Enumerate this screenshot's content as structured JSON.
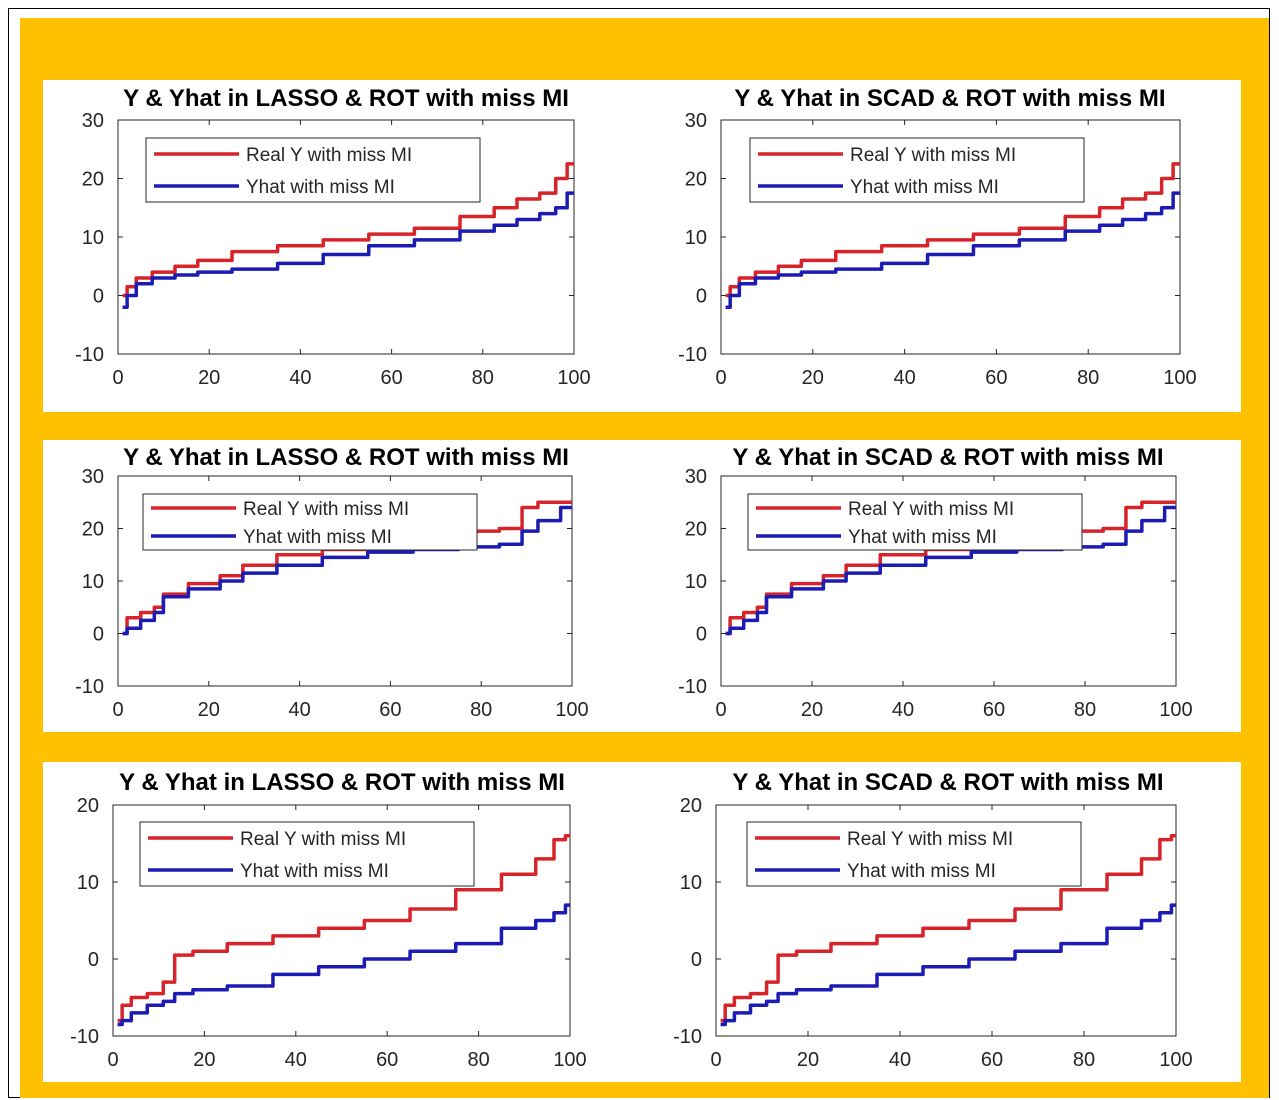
{
  "colors": {
    "frame_bg": "#ffc000",
    "panel_bg": "#ffffff",
    "real_line": "#d7242a",
    "yhat_line": "#1c1cb4",
    "axis": "#262626"
  },
  "legend": {
    "real": "Real Y with miss MI",
    "yhat": "Yhat with miss MI"
  },
  "chart_data": [
    {
      "type": "line",
      "title": "Y & Yhat in LASSO & ROT with miss MI",
      "xlim": [
        0,
        100
      ],
      "ylim": [
        -10,
        30
      ],
      "xticks": [
        0,
        20,
        40,
        60,
        80,
        100
      ],
      "yticks": [
        -10,
        0,
        10,
        20,
        30
      ],
      "legend_position": "top-left",
      "x": [
        1,
        3,
        5,
        10,
        15,
        20,
        30,
        40,
        50,
        60,
        70,
        80,
        85,
        90,
        95,
        97,
        100
      ],
      "series": [
        {
          "name": "Real Y with miss MI",
          "values": [
            0,
            1.5,
            3,
            4,
            5,
            6,
            7.5,
            8.5,
            9.5,
            10.5,
            11.5,
            13.5,
            15,
            16.5,
            17.5,
            20,
            22.5
          ]
        },
        {
          "name": "Yhat with miss MI",
          "values": [
            -2,
            0,
            2,
            3,
            3.5,
            4,
            4.5,
            5.5,
            7,
            8.5,
            9.5,
            11,
            12,
            13,
            14,
            15,
            17.5
          ]
        }
      ]
    },
    {
      "type": "line",
      "title": "Y & Yhat in SCAD & ROT with miss MI",
      "xlim": [
        0,
        100
      ],
      "ylim": [
        -10,
        30
      ],
      "xticks": [
        0,
        20,
        40,
        60,
        80,
        100
      ],
      "yticks": [
        -10,
        0,
        10,
        20,
        30
      ],
      "legend_position": "top-left",
      "x": [
        1,
        3,
        5,
        10,
        15,
        20,
        30,
        40,
        50,
        60,
        70,
        80,
        85,
        90,
        95,
        97,
        100
      ],
      "series": [
        {
          "name": "Real Y with miss MI",
          "values": [
            0,
            1.5,
            3,
            4,
            5,
            6,
            7.5,
            8.5,
            9.5,
            10.5,
            11.5,
            13.5,
            15,
            16.5,
            17.5,
            20,
            22.5
          ]
        },
        {
          "name": "Yhat with miss MI",
          "values": [
            -2,
            0,
            2,
            3,
            3.5,
            4,
            4.5,
            5.5,
            7,
            8.5,
            9.5,
            11,
            12,
            13,
            14,
            15,
            17.5
          ]
        }
      ]
    },
    {
      "type": "line",
      "title": "Y & Yhat in LASSO & ROT with miss MI",
      "xlim": [
        0,
        100
      ],
      "ylim": [
        -10,
        30
      ],
      "xticks": [
        0,
        20,
        40,
        60,
        80,
        100
      ],
      "yticks": [
        -10,
        0,
        10,
        20,
        30
      ],
      "legend_position": "top-left",
      "x": [
        1,
        3,
        7,
        9,
        11,
        20,
        25,
        30,
        40,
        50,
        60,
        70,
        80,
        88,
        90,
        95,
        100
      ],
      "series": [
        {
          "name": "Real Y with miss MI",
          "values": [
            0,
            3,
            4,
            5,
            7.5,
            9.5,
            11,
            13,
            15,
            16,
            17,
            18,
            19.5,
            20,
            24,
            25,
            25
          ]
        },
        {
          "name": "Yhat with miss MI",
          "values": [
            0,
            1,
            2.5,
            4,
            7,
            8.5,
            10,
            11.5,
            13,
            14.5,
            15.5,
            16,
            16.5,
            17,
            19.5,
            21.5,
            24
          ]
        }
      ]
    },
    {
      "type": "line",
      "title": "Y & Yhat in SCAD & ROT with miss MI",
      "xlim": [
        0,
        100
      ],
      "ylim": [
        -10,
        30
      ],
      "xticks": [
        0,
        20,
        40,
        60,
        80,
        100
      ],
      "yticks": [
        -10,
        0,
        10,
        20,
        30
      ],
      "legend_position": "top-left",
      "x": [
        1,
        3,
        7,
        9,
        11,
        20,
        25,
        30,
        40,
        50,
        60,
        70,
        80,
        88,
        90,
        95,
        100
      ],
      "series": [
        {
          "name": "Real Y with miss MI",
          "values": [
            0,
            3,
            4,
            5,
            7.5,
            9.5,
            11,
            13,
            15,
            16,
            17,
            18,
            19.5,
            20,
            24,
            25,
            25
          ]
        },
        {
          "name": "Yhat with miss MI",
          "values": [
            0,
            1,
            2.5,
            4,
            7,
            8.5,
            10,
            11.5,
            13,
            14.5,
            15.5,
            16,
            16.5,
            17,
            19.5,
            21.5,
            24
          ]
        }
      ]
    },
    {
      "type": "line",
      "title": "Y & Yhat in LASSO & ROT with miss MI",
      "xlim": [
        0,
        100
      ],
      "ylim": [
        -10,
        20
      ],
      "xticks": [
        0,
        20,
        40,
        60,
        80,
        100
      ],
      "yticks": [
        -10,
        0,
        10,
        20
      ],
      "legend_position": "top-left",
      "x": [
        1,
        3,
        5,
        10,
        12,
        15,
        20,
        30,
        40,
        50,
        60,
        70,
        80,
        90,
        95,
        98,
        100
      ],
      "series": [
        {
          "name": "Real Y with miss MI",
          "values": [
            -8,
            -6,
            -5,
            -4.5,
            -3,
            0.5,
            1,
            2,
            3,
            4,
            5,
            6.5,
            9,
            11,
            13,
            15.5,
            16
          ]
        },
        {
          "name": "Yhat with miss MI",
          "values": [
            -8.5,
            -8,
            -7,
            -6,
            -5.5,
            -4.5,
            -4,
            -3.5,
            -2,
            -1,
            0,
            1,
            2,
            4,
            5,
            6,
            7
          ]
        }
      ]
    },
    {
      "type": "line",
      "title": "Y & Yhat in SCAD & ROT with miss MI",
      "xlim": [
        0,
        100
      ],
      "ylim": [
        -10,
        20
      ],
      "xticks": [
        0,
        20,
        40,
        60,
        80,
        100
      ],
      "yticks": [
        -10,
        0,
        10,
        20
      ],
      "legend_position": "top-left",
      "x": [
        1,
        3,
        5,
        10,
        12,
        15,
        20,
        30,
        40,
        50,
        60,
        70,
        80,
        90,
        95,
        98,
        100
      ],
      "series": [
        {
          "name": "Real Y with miss MI",
          "values": [
            -8,
            -6,
            -5,
            -4.5,
            -3,
            0.5,
            1,
            2,
            3,
            4,
            5,
            6.5,
            9,
            11,
            13,
            15.5,
            16
          ]
        },
        {
          "name": "Yhat with miss MI",
          "values": [
            -8.5,
            -8,
            -7,
            -6,
            -5.5,
            -4.5,
            -4,
            -3.5,
            -2,
            -1,
            0,
            1,
            2,
            4,
            5,
            6,
            7
          ]
        }
      ]
    }
  ]
}
